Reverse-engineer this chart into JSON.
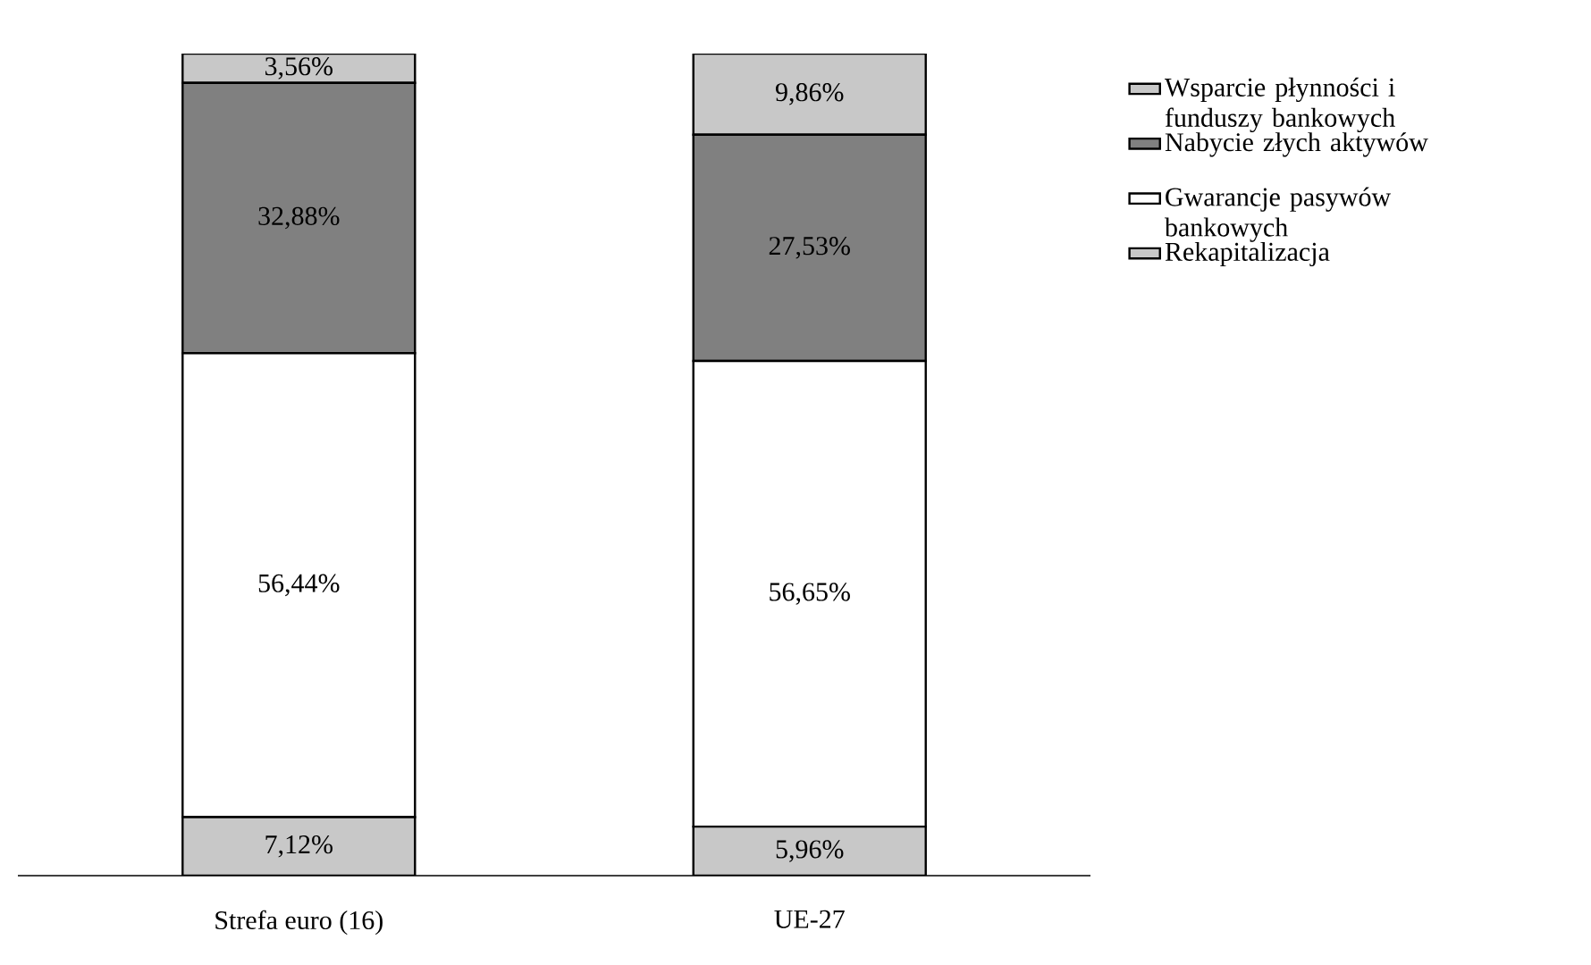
{
  "chart_data": {
    "type": "bar",
    "stacked": true,
    "categories": [
      "Strefa euro (16)",
      "UE-27"
    ],
    "legend": "right",
    "tick_labels": "x",
    "series": [
      {
        "name": "Rekapitalizacja",
        "color": "#c8c8c8",
        "values": [
          7.12,
          5.96
        ],
        "value_labels": [
          "7,12%",
          "5,96%"
        ]
      },
      {
        "name": "Gwarancje pasywów bankowych",
        "color": "#ffffff",
        "values": [
          56.44,
          56.65
        ],
        "value_labels": [
          "56,44%",
          "56,65%"
        ]
      },
      {
        "name": "Nabycie złych aktywów",
        "color": "#808080",
        "values": [
          32.88,
          27.53
        ],
        "value_labels": [
          "32,88%",
          "27,53%"
        ]
      },
      {
        "name": "Wsparcie płynności i funduszy bankowych",
        "color": "#c8c8c8",
        "values": [
          3.56,
          9.86
        ],
        "value_labels": [
          "3,56%",
          "9,86%"
        ]
      }
    ]
  }
}
